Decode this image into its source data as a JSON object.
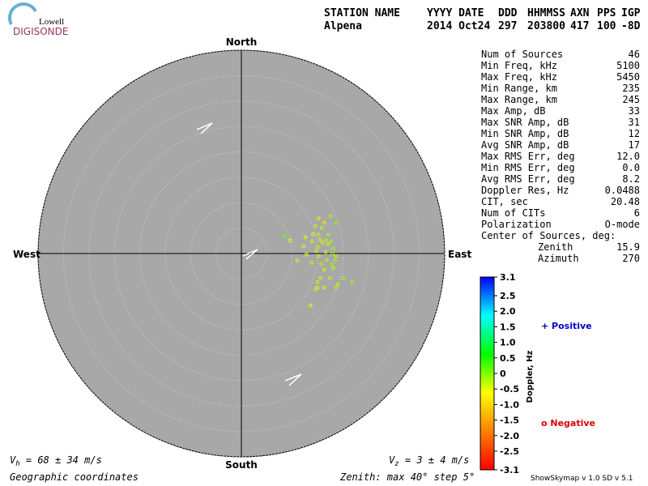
{
  "logo": {
    "top": "Lowell",
    "bottom": "DIGISONDE"
  },
  "header": {
    "columns": [
      "STATION NAME",
      "YYYY DATE",
      "DDD",
      "HHMMSS",
      "AXN",
      "PPS",
      "IGP"
    ],
    "values": [
      "Alpena",
      "2014 Oct24",
      "297",
      "203800",
      "417",
      "100",
      "-8D"
    ]
  },
  "stats": {
    "rows": [
      [
        "Num of Sources",
        "46"
      ],
      [
        "Min Freq, kHz",
        "5100"
      ],
      [
        "Max Freq, kHz",
        "5450"
      ],
      [
        "Min Range, km",
        "235"
      ],
      [
        "Max Range, km",
        "245"
      ],
      [
        "Max Amp, dB",
        "33"
      ],
      [
        "Max SNR Amp, dB",
        "31"
      ],
      [
        "Min SNR Amp, dB",
        "12"
      ],
      [
        "Avg SNR Amp, dB",
        "17"
      ],
      [
        "Max RMS Err, deg",
        "12.0"
      ],
      [
        "Min RMS Err, deg",
        "0.0"
      ],
      [
        "Avg RMS Err, deg",
        "8.2"
      ],
      [
        "Doppler Res, Hz",
        "0.0488"
      ],
      [
        "CIT, sec",
        "20.48"
      ],
      [
        "Num of CITs",
        "6"
      ],
      [
        "Polarization",
        "O-mode"
      ]
    ],
    "center_title": "Center of Sources, deg:",
    "center_rows": [
      [
        "Zenith",
        "15.9"
      ],
      [
        "Azimuth",
        "270"
      ]
    ]
  },
  "chart_data": {
    "type": "skymap",
    "directions": {
      "north": "North",
      "south": "South",
      "east": "East",
      "west": "West"
    },
    "rlim": [
      0,
      40
    ],
    "rticks": [
      5,
      10,
      15,
      20,
      25,
      30,
      35,
      40
    ],
    "x": [
      17.6,
      15.2,
      16.3,
      18.6,
      14.6,
      15.8,
      8.5,
      14.1,
      15.2,
      17.1,
      12.6,
      15.5,
      16.6,
      9.6,
      13.9,
      17.6,
      16.0,
      17.1,
      12.2,
      15.0,
      18.1,
      14.7,
      16.6,
      17.9,
      12.8,
      15.2,
      18.6,
      11.0,
      16.8,
      18.4,
      13.8,
      15.7,
      17.8,
      16.3,
      18.1,
      20.0,
      15.5,
      17.4,
      21.8,
      19.0,
      15.0,
      16.3,
      14.6,
      18.6,
      13.6,
      15.0
    ],
    "values": [
      7.4,
      6.9,
      6.1,
      5.9,
      5.4,
      5.1,
      3.5,
      3.8,
      3.7,
      3.7,
      3.2,
      2.7,
      2.6,
      2.6,
      2.4,
      2.4,
      2.1,
      1.8,
      1.4,
      1.3,
      1.0,
      0.5,
      0.3,
      0.0,
      -0.2,
      -0.5,
      -0.5,
      -1.4,
      -1.3,
      -1.4,
      -1.8,
      -2.1,
      -2.2,
      -3.2,
      -2.9,
      -4.8,
      -4.8,
      -4.8,
      -5.6,
      -6.1,
      -6.7,
      -6.7,
      -7.0,
      -6.7,
      -10.2,
      -5.6
    ],
    "doppler": [
      -0.3,
      -0.4,
      -0.5,
      0.1,
      -0.4,
      -0.3,
      0.1,
      -0.5,
      -0.4,
      -0.3,
      -0.6,
      -0.4,
      -0.3,
      -0.5,
      -0.4,
      -0.2,
      -0.3,
      -0.4,
      -0.5,
      -0.3,
      -0.2,
      -0.4,
      -0.3,
      -0.2,
      -0.5,
      -0.4,
      -0.3,
      -0.5,
      -0.3,
      -0.2,
      -0.4,
      -0.3,
      -0.2,
      -0.4,
      -0.3,
      -0.2,
      -0.4,
      -0.3,
      -0.2,
      -0.3,
      -0.5,
      -0.4,
      -0.5,
      -0.3,
      -0.6,
      -0.4
    ],
    "colormap": [
      "#ff0000",
      "#ff8000",
      "#ffff00",
      "#00ff00",
      "#00ffff",
      "#0000ff"
    ],
    "clim": [
      -3.1,
      3.1
    ],
    "cticks": [
      3.1,
      2.5,
      {
        "value": 2.0,
        "label": "2.0"
      },
      1.5,
      {
        "value": 1.0,
        "label": "1.0"
      },
      0.5,
      0,
      -0.5,
      {
        "value": -1.0,
        "label": "-1.0"
      },
      -1.5,
      {
        "value": -2.0,
        "label": "-2.0"
      },
      -2.5,
      -3.1
    ],
    "colorbar_title": "Doppler, Hz",
    "legend": {
      "positive": "+ Positive",
      "positive_color": "#0000cc",
      "negative": "o Negative",
      "negative_color": "#dd0000"
    }
  },
  "footer": {
    "vh": {
      "symbol": "V",
      "sub": "h",
      "text": " = 68 ± 34 m/s"
    },
    "vz": {
      "symbol": "V",
      "sub": "z",
      "text": " = 3 ± 4 m/s"
    },
    "coords": "Geographic coordinates",
    "zenith": "Zenith: max 40°  step 5°",
    "version": "ShowSkymap v 1.0   SD v 5.1"
  }
}
